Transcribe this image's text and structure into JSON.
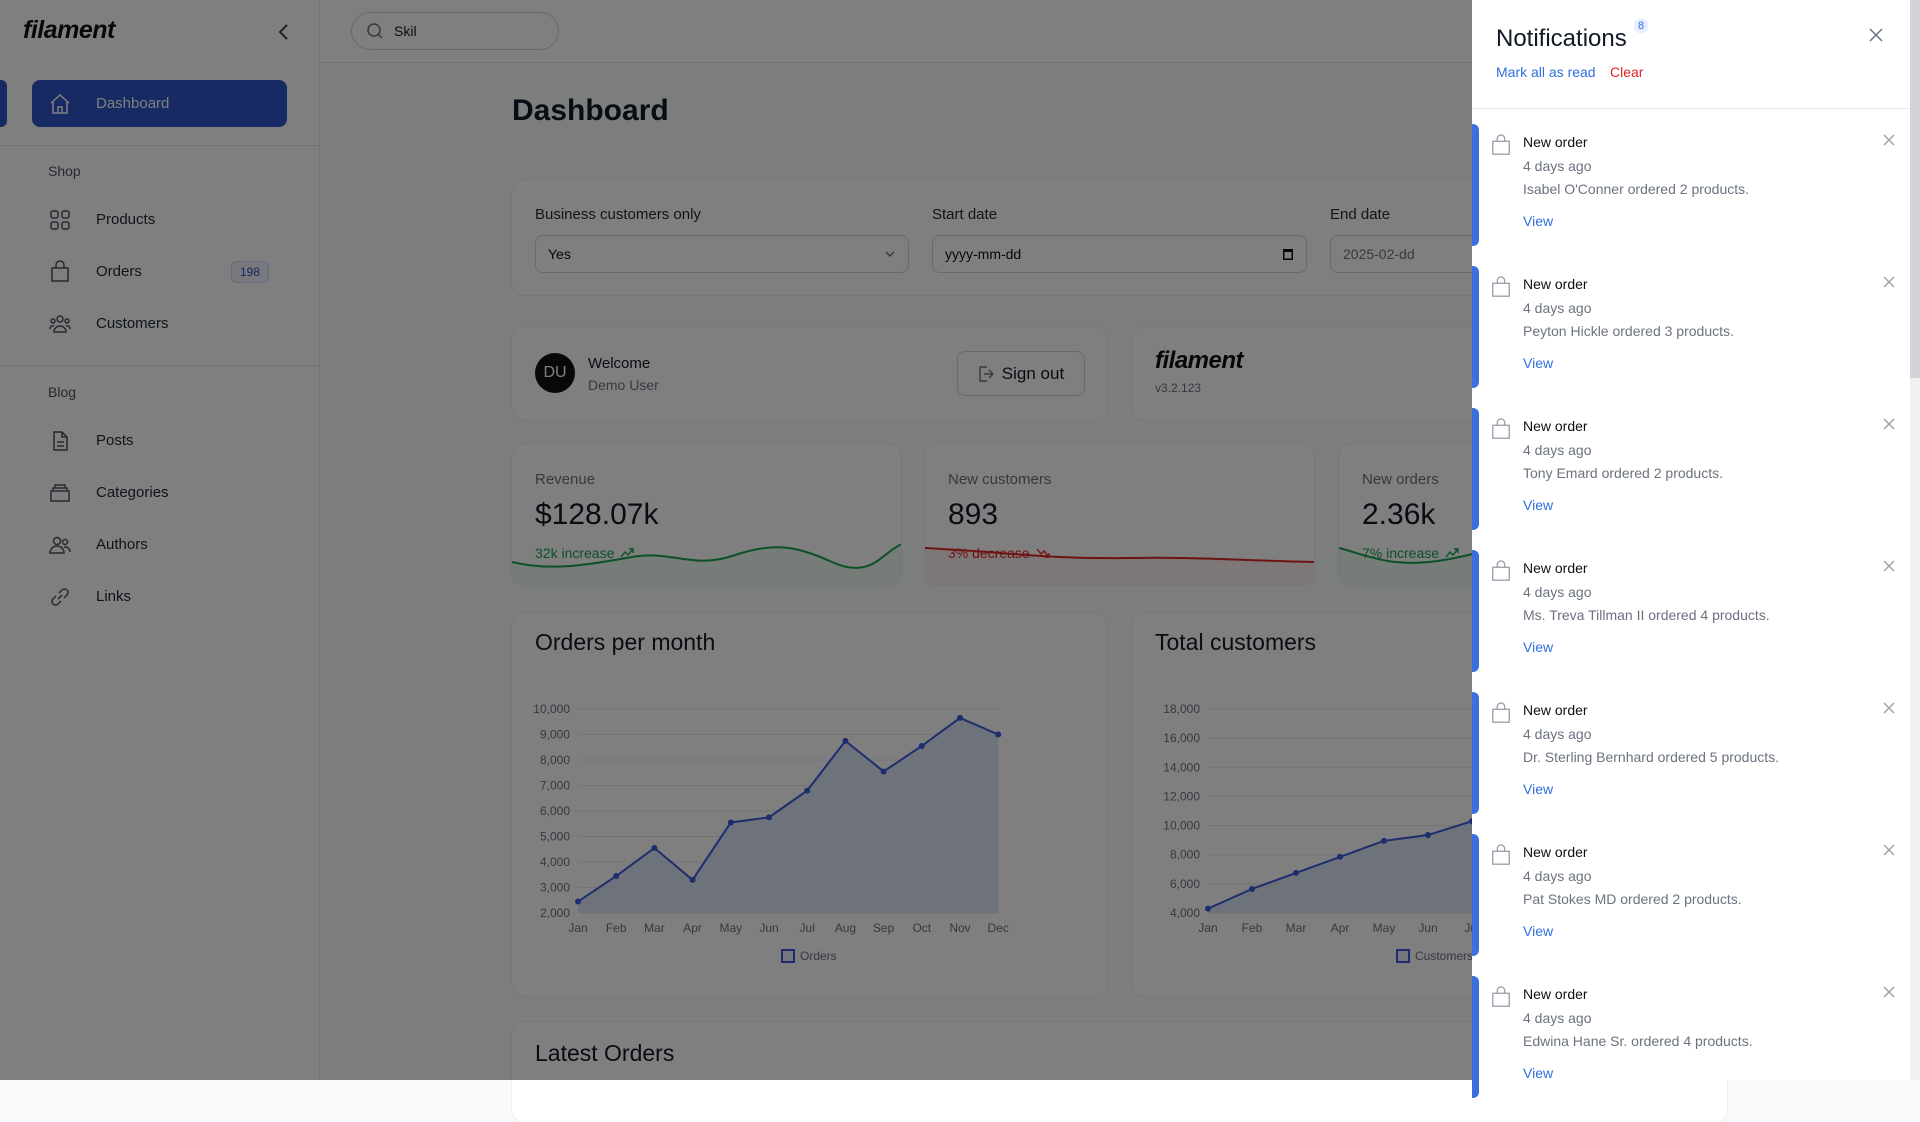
{
  "sidebar": {
    "logo": "filament",
    "items": [
      {
        "label": "Dashboard",
        "icon": "home-icon",
        "active": true
      },
      {
        "group": "Shop"
      },
      {
        "label": "Products",
        "icon": "grid-icon"
      },
      {
        "label": "Orders",
        "icon": "shopping-bag-icon",
        "badge": "198"
      },
      {
        "label": "Customers",
        "icon": "users-icon"
      },
      {
        "group": "Blog"
      },
      {
        "label": "Posts",
        "icon": "document-icon"
      },
      {
        "label": "Categories",
        "icon": "folder-icon"
      },
      {
        "label": "Authors",
        "icon": "user-group-icon"
      },
      {
        "label": "Links",
        "icon": "link-icon"
      }
    ]
  },
  "topbar": {
    "search_value": "Skil"
  },
  "page": {
    "title": "Dashboard"
  },
  "filters": {
    "business_label": "Business customers only",
    "business_value": "Yes",
    "start_label": "Start date",
    "start_placeholder": "yyyy-mm-dd",
    "end_label": "End date",
    "end_value": "2025-02-dd"
  },
  "welcome": {
    "avatar": "DU",
    "title": "Welcome",
    "user": "Demo User",
    "signout": "Sign out"
  },
  "info": {
    "logo": "filament",
    "version": "v3.2.123"
  },
  "stats": [
    {
      "label": "Revenue",
      "value": "$128.07k",
      "desc": "32k increase",
      "trend": "up",
      "color": "#16a34a"
    },
    {
      "label": "New customers",
      "value": "893",
      "desc": "3% decrease",
      "trend": "down",
      "color": "#dc2626"
    },
    {
      "label": "New orders",
      "value": "2.36k",
      "desc": "7% increase",
      "trend": "up",
      "color": "#16a34a"
    }
  ],
  "chart_data": [
    {
      "type": "area",
      "title": "Orders per month",
      "categories": [
        "Jan",
        "Feb",
        "Mar",
        "Apr",
        "May",
        "Jun",
        "Jul",
        "Aug",
        "Sep",
        "Oct",
        "Nov",
        "Dec"
      ],
      "series": [
        {
          "name": "Orders",
          "values": [
            2450,
            3450,
            4550,
            3300,
            5550,
            5750,
            6800,
            8750,
            7550,
            8550,
            9650,
            9000
          ]
        }
      ],
      "ylim": [
        2000,
        10000
      ],
      "yticks": [
        2000,
        3000,
        4000,
        5000,
        6000,
        7000,
        8000,
        9000,
        10000
      ],
      "grid": true,
      "legend": "bottom",
      "color": "#3b5bdb"
    },
    {
      "type": "area",
      "title": "Total customers",
      "categories": [
        "Jan",
        "Feb",
        "Mar",
        "Apr",
        "May",
        "Jun",
        "Jul"
      ],
      "series": [
        {
          "name": "Customers",
          "values": [
            4300,
            5650,
            6750,
            7850,
            8950,
            9350,
            10300
          ]
        }
      ],
      "ylim": [
        4000,
        18000
      ],
      "yticks": [
        4000,
        6000,
        8000,
        10000,
        12000,
        14000,
        16000,
        18000
      ],
      "grid": true,
      "legend": "bottom",
      "color": "#3b5bdb"
    }
  ],
  "latest": {
    "title": "Latest Orders"
  },
  "notifications": {
    "title": "Notifications",
    "count": "8",
    "mark_all": "Mark all as read",
    "clear": "Clear",
    "items": [
      {
        "title": "New order",
        "time": "4 days ago",
        "body": "Isabel O'Conner ordered 2 products.",
        "action": "View"
      },
      {
        "title": "New order",
        "time": "4 days ago",
        "body": "Peyton Hickle ordered 3 products.",
        "action": "View"
      },
      {
        "title": "New order",
        "time": "4 days ago",
        "body": "Tony Emard ordered 2 products.",
        "action": "View"
      },
      {
        "title": "New order",
        "time": "4 days ago",
        "body": "Ms. Treva Tillman II ordered 4 products.",
        "action": "View"
      },
      {
        "title": "New order",
        "time": "4 days ago",
        "body": "Dr. Sterling Bernhard ordered 5 products.",
        "action": "View"
      },
      {
        "title": "New order",
        "time": "4 days ago",
        "body": "Pat Stokes MD ordered 2 products.",
        "action": "View"
      },
      {
        "title": "New order",
        "time": "4 days ago",
        "body": "Edwina Hane Sr. ordered 4 products.",
        "action": "View"
      }
    ]
  }
}
